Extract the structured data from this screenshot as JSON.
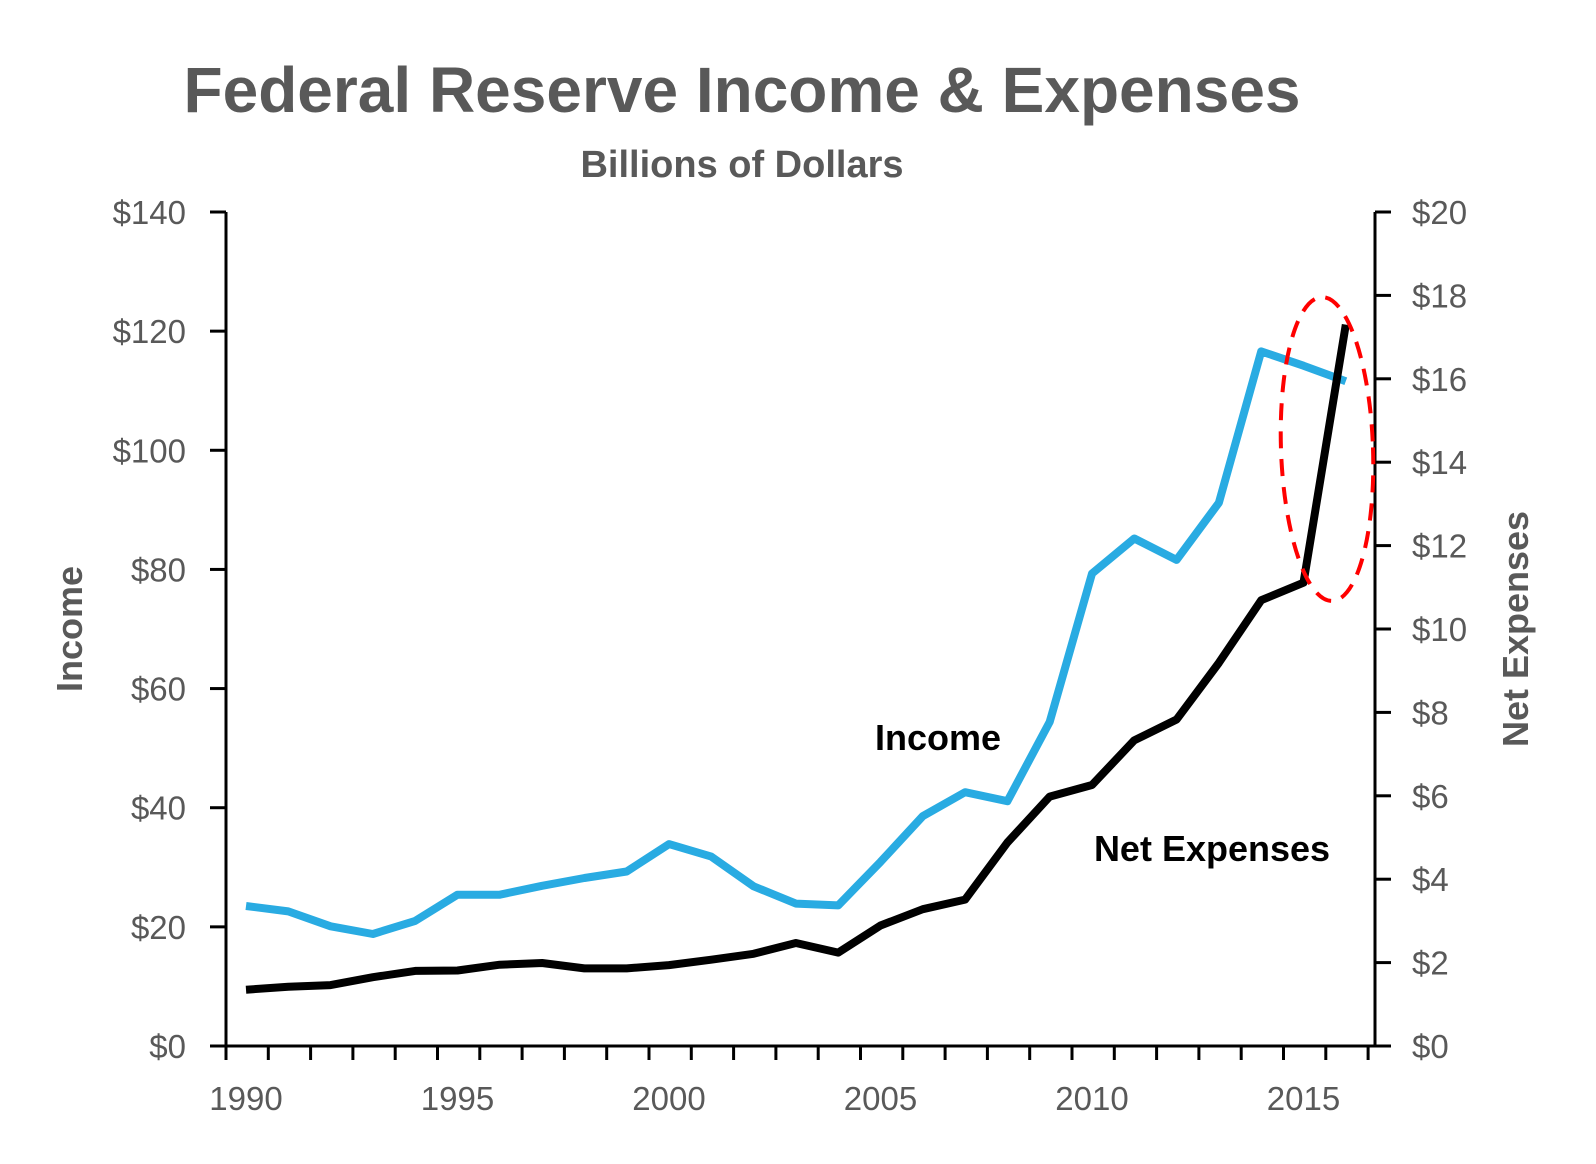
{
  "chart_data": {
    "type": "line",
    "title": "Federal Reserve Income & Expenses",
    "subtitle": "Billions of Dollars",
    "xlabel": "",
    "ylabel": "Income",
    "y2label": "Net Expenses",
    "xlim": [
      1990,
      2016
    ],
    "ylim": [
      0,
      140
    ],
    "y2lim": [
      0,
      20
    ],
    "x_ticks": [
      "1990",
      "1995",
      "2000",
      "2005",
      "2010",
      "2015"
    ],
    "y_ticks": [
      "$0",
      "$20",
      "$40",
      "$60",
      "$80",
      "$100",
      "$120",
      "$140"
    ],
    "y2_ticks": [
      "$0",
      "$2",
      "$4",
      "$6",
      "$8",
      "$10",
      "$12",
      "$14",
      "$16",
      "$18",
      "$20"
    ],
    "x": [
      1990,
      1991,
      1992,
      1993,
      1994,
      1995,
      1996,
      1997,
      1998,
      1999,
      2000,
      2001,
      2002,
      2003,
      2004,
      2005,
      2006,
      2007,
      2008,
      2009,
      2010,
      2011,
      2012,
      2013,
      2014,
      2015,
      2016
    ],
    "series": [
      {
        "name": "Income",
        "axis": "left",
        "color": "#29ABE2",
        "values": [
          23.5,
          22.6,
          20.1,
          18.8,
          21.0,
          25.4,
          25.4,
          26.9,
          28.2,
          29.3,
          33.9,
          31.8,
          26.8,
          23.9,
          23.6,
          30.9,
          38.6,
          42.6,
          41.1,
          54.4,
          79.3,
          85.2,
          81.6,
          91.2,
          116.6,
          114.2,
          111.6
        ]
      },
      {
        "name": "Net Expenses",
        "axis": "right",
        "color": "#000000",
        "values": [
          1.35,
          1.42,
          1.46,
          1.65,
          1.8,
          1.81,
          1.95,
          1.99,
          1.86,
          1.86,
          1.94,
          2.07,
          2.21,
          2.47,
          2.24,
          2.89,
          3.28,
          3.51,
          4.88,
          5.98,
          6.26,
          7.33,
          7.83,
          9.19,
          10.69,
          11.11,
          17.3
        ]
      }
    ],
    "annotations": [
      {
        "type": "ellipse",
        "style": "dashed",
        "color": "#FF0000",
        "around": "2015-2016 jump in net expenses"
      }
    ]
  }
}
